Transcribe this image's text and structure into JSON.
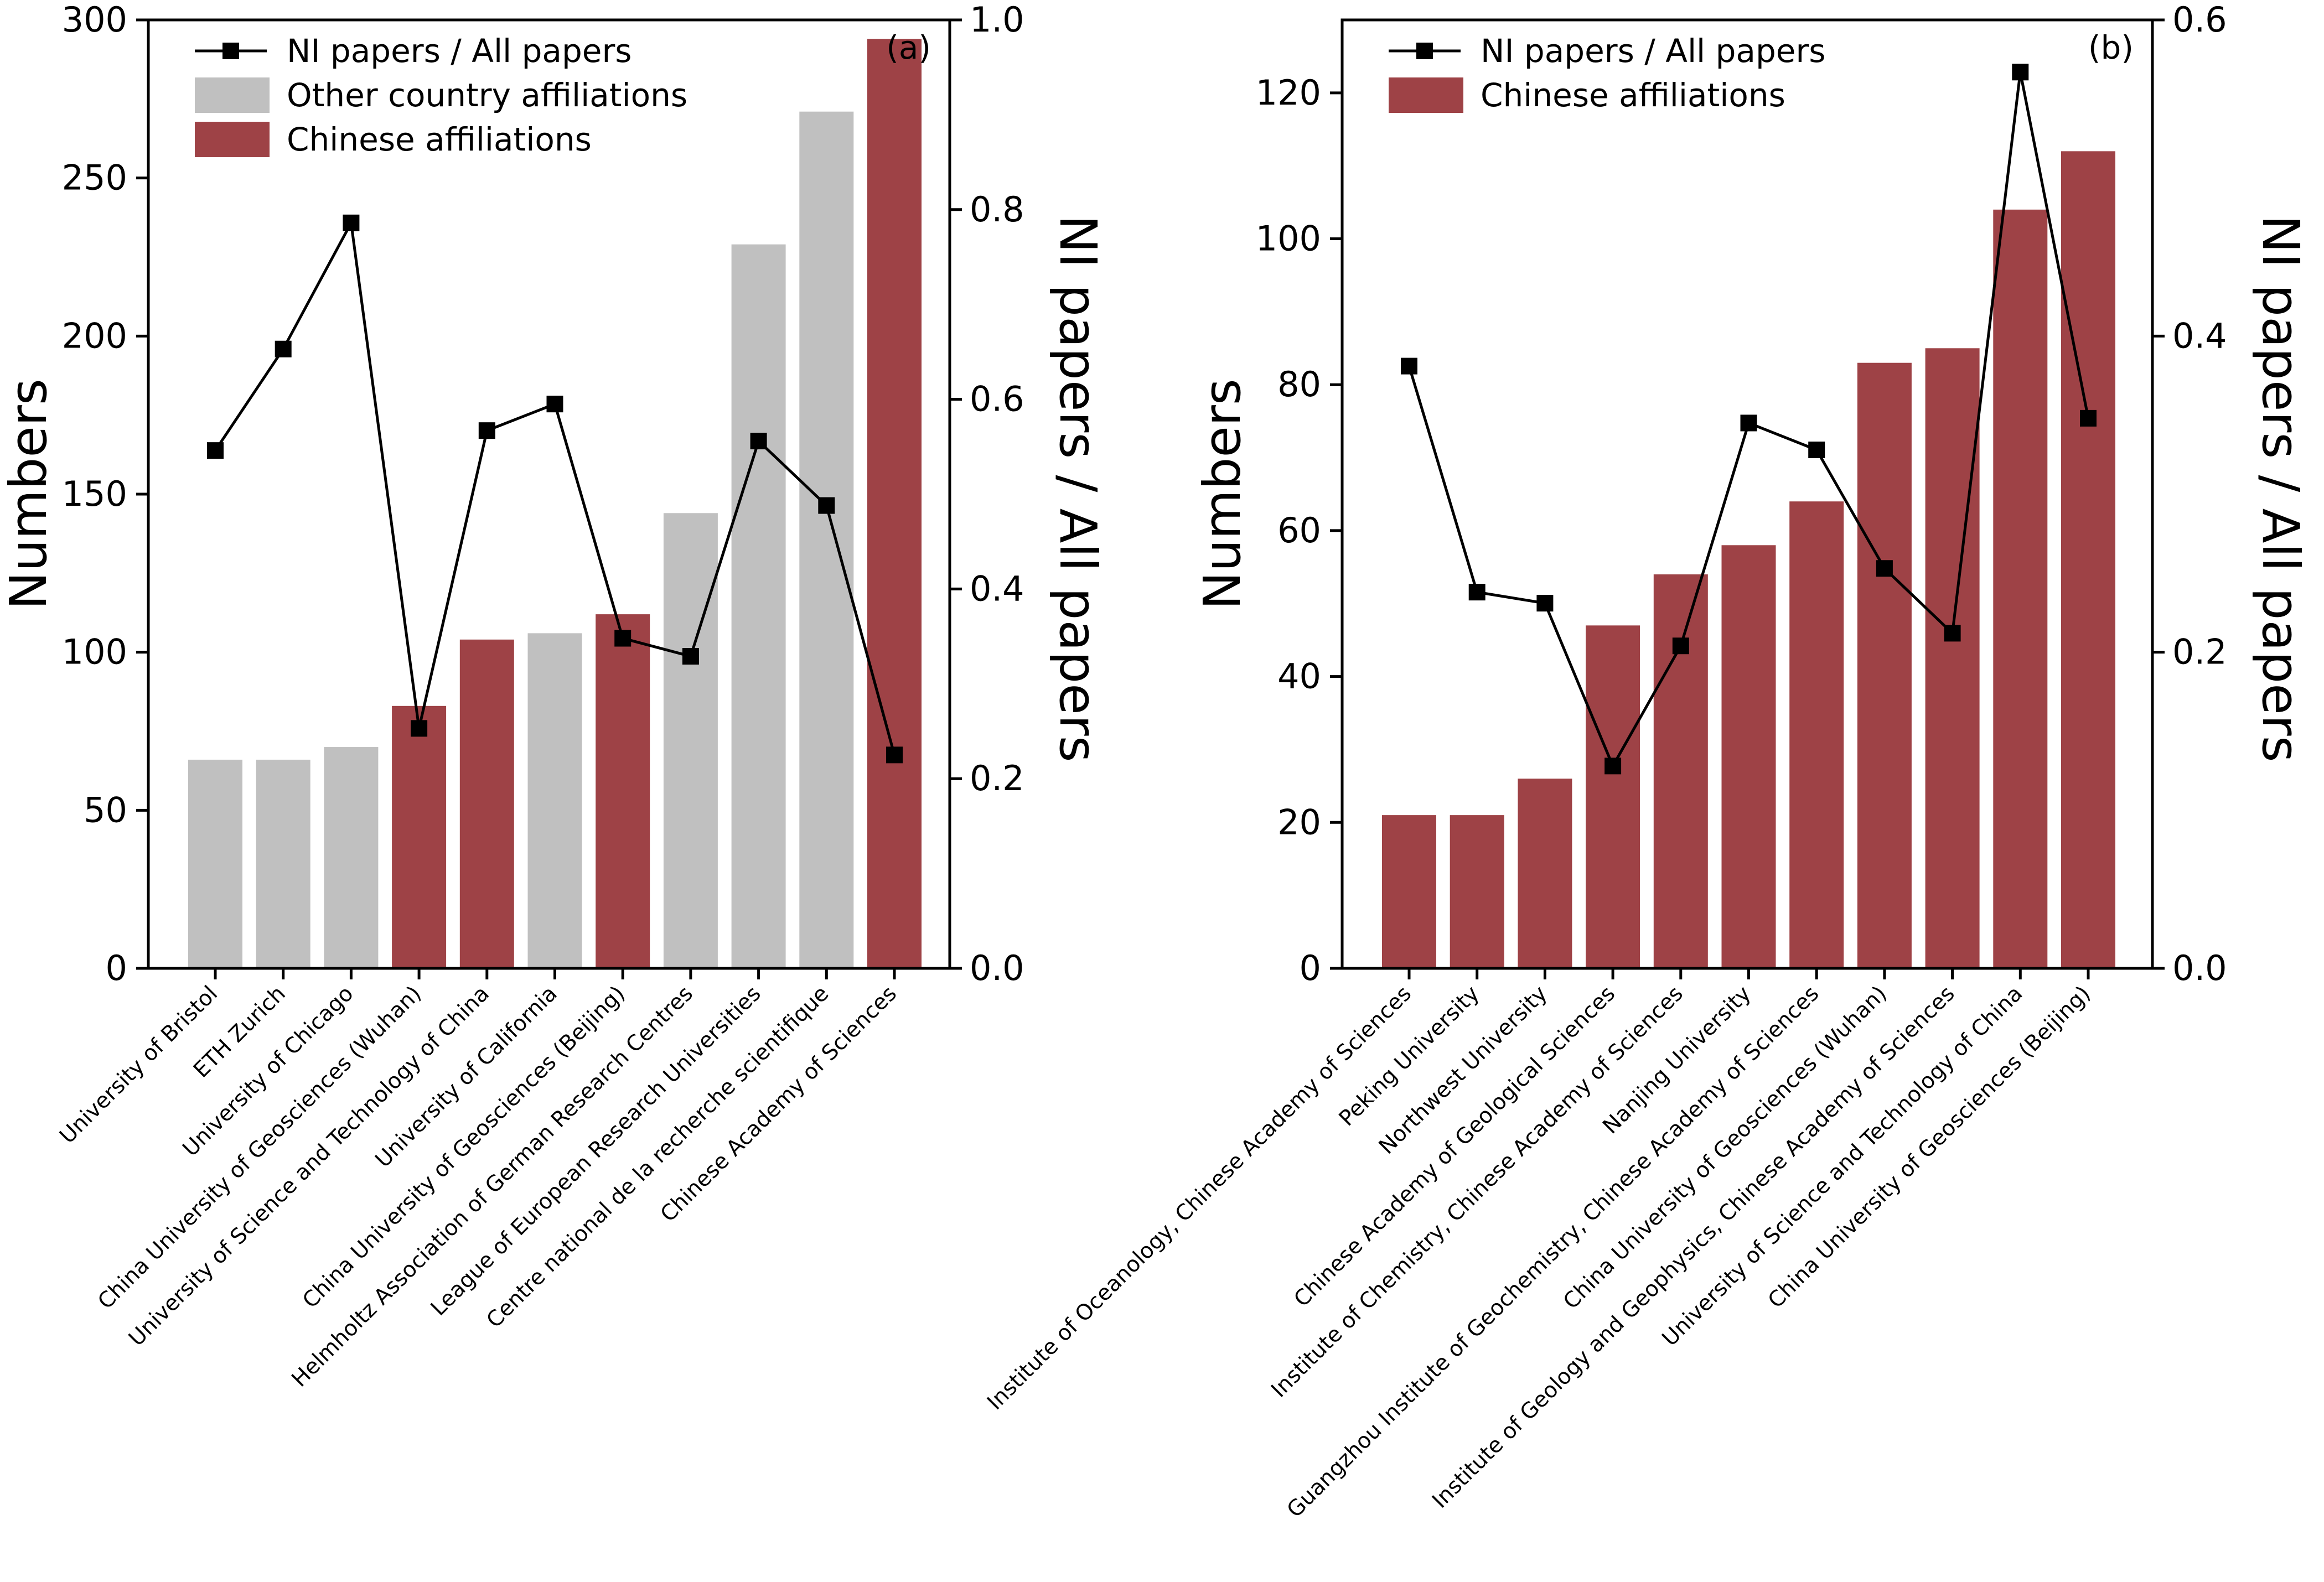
{
  "colors": {
    "chinese": "#9e4246",
    "other": "#c0c0c0",
    "line": "#000000"
  },
  "chart_data": [
    {
      "type": "bar",
      "panel_label": "(a)",
      "categories": [
        "University of Bristol",
        "ETH Zurich",
        "University of Chicago",
        "China University of Geosciences (Wuhan)",
        "University of Science and Technology of China",
        "University of California",
        "China University of Geosciences (Beijing)",
        "Helmholtz Association of German Research Centres",
        "League of European Research Universities",
        "Centre national de la recherche scientifique",
        "Chinese Academy of Sciences"
      ],
      "bar_groups": [
        "other",
        "other",
        "other",
        "chinese",
        "chinese",
        "other",
        "chinese",
        "other",
        "other",
        "other",
        "chinese"
      ],
      "series": [
        {
          "name": "Numbers",
          "axis": "left",
          "kind": "bar",
          "values": [
            66,
            66,
            70,
            83,
            104,
            106,
            112,
            144,
            229,
            271,
            294
          ]
        },
        {
          "name": "NI papers / All papers",
          "axis": "right",
          "kind": "line",
          "values": [
            0.546,
            0.653,
            0.786,
            0.253,
            0.567,
            0.595,
            0.348,
            0.329,
            0.556,
            0.488,
            0.225
          ]
        }
      ],
      "legend": [
        {
          "label": "NI papers / All papers",
          "kind": "line"
        },
        {
          "label": "Other country affiliations",
          "kind": "other"
        },
        {
          "label": "Chinese affiliations",
          "kind": "chinese"
        }
      ],
      "legend_position": "top-left",
      "ylabel": "Numbers",
      "y2label": "NI papers / All papers",
      "ylim": [
        0,
        300
      ],
      "yticks": [
        0,
        50,
        100,
        150,
        200,
        250,
        300
      ],
      "y2lim": [
        0,
        1.0
      ],
      "y2ticks": [
        "0.0",
        "0.2",
        "0.4",
        "0.6",
        "0.8",
        "1.0"
      ],
      "grid": false
    },
    {
      "type": "bar",
      "panel_label": "(b)",
      "categories": [
        "Institute of Oceanology, Chinese Academy of Sciences",
        "Peking University",
        "Northwest University",
        "Chinese Academy of Geological Sciences",
        "Institute of Chemistry, Chinese Academy of Sciences",
        "Nanjing University",
        "Guangzhou Institute of Geochemistry, Chinese Academy of Sciences",
        "China University of Geosciences (Wuhan)",
        "Institute of Geology and Geophysics, Chinese Academy of Sciences",
        "University of Science and Technology of China",
        "China University of Geosciences (Beijing)"
      ],
      "bar_groups": [
        "chinese",
        "chinese",
        "chinese",
        "chinese",
        "chinese",
        "chinese",
        "chinese",
        "chinese",
        "chinese",
        "chinese",
        "chinese"
      ],
      "series": [
        {
          "name": "Numbers",
          "axis": "left",
          "kind": "bar",
          "values": [
            21,
            21,
            26,
            47,
            54,
            58,
            64,
            83,
            85,
            104,
            112
          ]
        },
        {
          "name": "NI papers / All papers",
          "axis": "right",
          "kind": "line",
          "values": [
            0.381,
            0.238,
            0.231,
            0.128,
            0.204,
            0.345,
            0.328,
            0.253,
            0.212,
            0.567,
            0.348
          ]
        }
      ],
      "legend": [
        {
          "label": "NI papers / All papers",
          "kind": "line"
        },
        {
          "label": "Chinese affiliations",
          "kind": "chinese"
        }
      ],
      "legend_position": "top-left",
      "ylabel": "Numbers",
      "y2label": "NI papers / All papers",
      "ylim": [
        0,
        130
      ],
      "yticks": [
        0,
        20,
        40,
        60,
        80,
        100,
        120
      ],
      "y2lim": [
        0,
        0.6
      ],
      "y2ticks": [
        "0.0",
        "0.2",
        "0.4",
        "0.6"
      ],
      "grid": false
    }
  ]
}
